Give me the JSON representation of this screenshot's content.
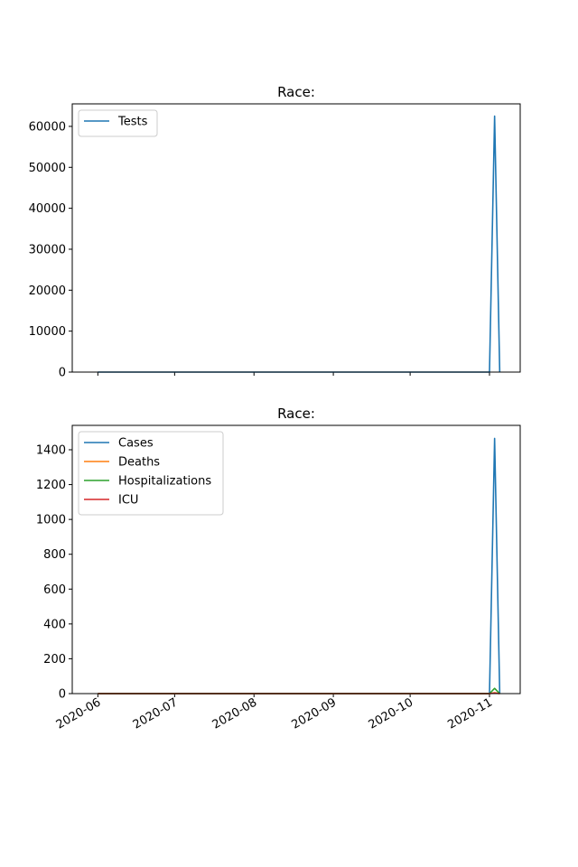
{
  "chart_data": [
    {
      "type": "line",
      "title": "Race:",
      "xlabel": "",
      "ylabel": "",
      "x": [
        "2020-06-01",
        "2020-11-01",
        "2020-11-03",
        "2020-11-05"
      ],
      "x_ticks": [
        "2020-06",
        "2020-07",
        "2020-08",
        "2020-09",
        "2020-10",
        "2020-11"
      ],
      "x_tick_dates": [
        "2020-06-01",
        "2020-07-01",
        "2020-08-01",
        "2020-09-01",
        "2020-10-01",
        "2020-11-01"
      ],
      "xlim": [
        "2020-05-22",
        "2020-11-13"
      ],
      "show_x_tick_labels": false,
      "ylim": [
        0,
        65500
      ],
      "y_ticks": [
        0,
        10000,
        20000,
        30000,
        40000,
        50000,
        60000
      ],
      "legend": "top-left",
      "grid": false,
      "series": [
        {
          "name": "Tests",
          "color": "#1f77b4",
          "values": [
            0,
            0,
            62500,
            0
          ]
        }
      ]
    },
    {
      "type": "line",
      "title": "Race:",
      "xlabel": "",
      "ylabel": "",
      "x": [
        "2020-06-01",
        "2020-11-01",
        "2020-11-03",
        "2020-11-05"
      ],
      "x_ticks": [
        "2020-06",
        "2020-07",
        "2020-08",
        "2020-09",
        "2020-10",
        "2020-11"
      ],
      "x_tick_dates": [
        "2020-06-01",
        "2020-07-01",
        "2020-08-01",
        "2020-09-01",
        "2020-10-01",
        "2020-11-01"
      ],
      "xlim": [
        "2020-05-22",
        "2020-11-13"
      ],
      "show_x_tick_labels": true,
      "ylim": [
        0,
        1540
      ],
      "y_ticks": [
        0,
        200,
        400,
        600,
        800,
        1000,
        1200,
        1400
      ],
      "legend": "top-left",
      "grid": false,
      "series": [
        {
          "name": "Cases",
          "color": "#1f77b4",
          "values": [
            0,
            0,
            1465,
            0
          ]
        },
        {
          "name": "Deaths",
          "color": "#ff7f0e",
          "values": [
            0,
            0,
            5,
            0
          ]
        },
        {
          "name": "Hospitalizations",
          "color": "#2ca02c",
          "values": [
            0,
            0,
            30,
            0
          ]
        },
        {
          "name": "ICU",
          "color": "#d62728",
          "values": [
            0,
            0,
            3,
            0
          ]
        }
      ]
    }
  ]
}
